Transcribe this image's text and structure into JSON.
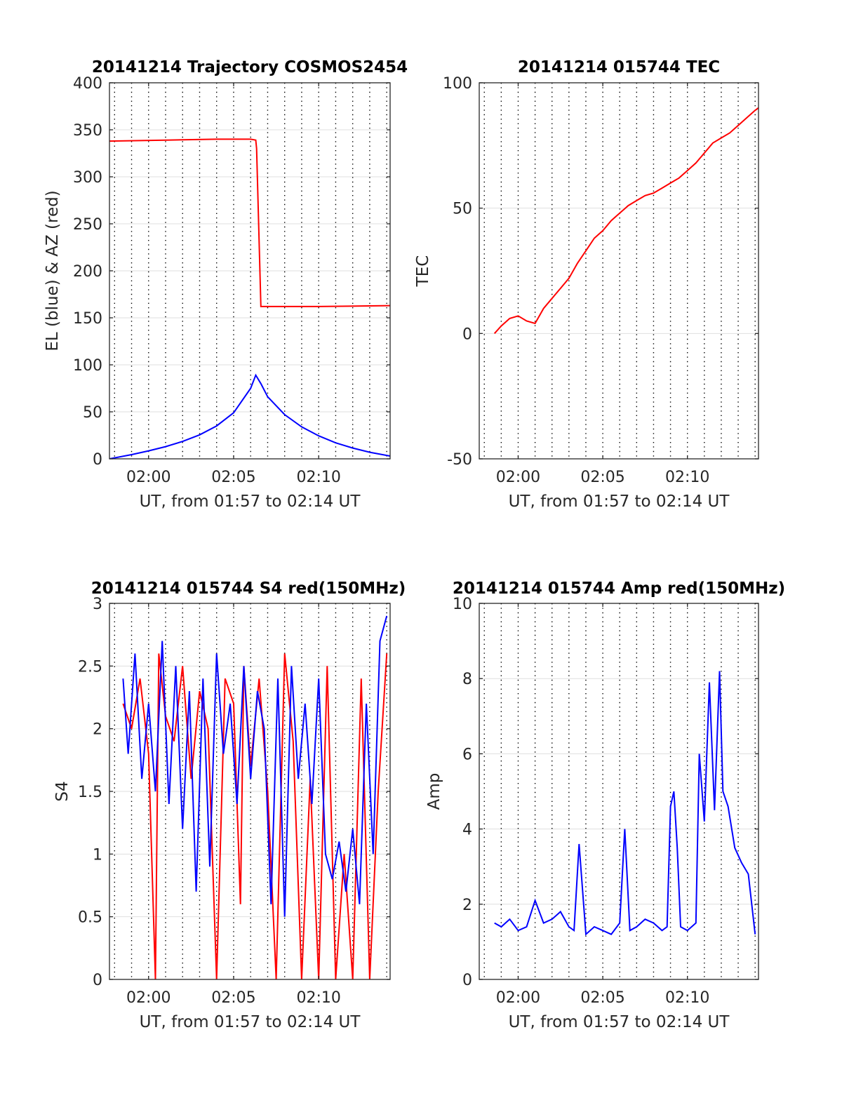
{
  "chart_data": [
    {
      "type": "line",
      "title": "20141214 Trajectory COSMOS2454",
      "xlabel": "UT, from 01:57 to 02:14 UT",
      "ylabel": "EL (blue) & AZ (red)",
      "x_unit": "minutes after 00:00 UT",
      "xlim": [
        117.7,
        134.2
      ],
      "ylim": [
        0,
        400
      ],
      "xticks": [
        "02:00",
        "02:05",
        "02:10"
      ],
      "yticks": [
        "0",
        "50",
        "100",
        "150",
        "200",
        "250",
        "300",
        "350",
        "400"
      ],
      "grid": true,
      "series": [
        {
          "color": "#ff0000",
          "x": [
            117.7,
            121.0,
            124.0,
            126.0,
            126.3,
            126.35,
            126.6,
            130.0,
            134.2
          ],
          "values": [
            338,
            339,
            340,
            340,
            339,
            330,
            162,
            162,
            163
          ]
        },
        {
          "color": "#0000ff",
          "x": [
            117.7,
            119.0,
            120.0,
            121.0,
            122.0,
            123.0,
            124.0,
            125.0,
            126.0,
            126.3,
            126.6,
            127.0,
            128.0,
            129.0,
            130.0,
            131.0,
            132.0,
            133.0,
            134.2
          ],
          "values": [
            0,
            4.5,
            8.5,
            13,
            18.5,
            25.5,
            35,
            49,
            75,
            89,
            80,
            66,
            47,
            34,
            24.5,
            17,
            11.5,
            7,
            3
          ]
        }
      ]
    },
    {
      "type": "line",
      "title": "20141214 015744 TEC",
      "xlabel": "UT, from 01:57 to 02:14 UT",
      "ylabel": "TEC",
      "x_unit": "minutes after 00:00 UT",
      "xlim": [
        117.7,
        134.2
      ],
      "ylim": [
        -50,
        100
      ],
      "xticks": [
        "02:00",
        "02:05",
        "02:10"
      ],
      "yticks": [
        "-50",
        "0",
        "50",
        "100"
      ],
      "grid": true,
      "series": [
        {
          "color": "#ff0000",
          "x": [
            118.6,
            119.0,
            119.5,
            120.0,
            120.5,
            121.0,
            121.5,
            122.0,
            122.5,
            123.0,
            123.5,
            124.0,
            124.5,
            125.0,
            125.5,
            126.0,
            126.5,
            127.0,
            127.5,
            128.0,
            128.5,
            129.0,
            129.5,
            130.0,
            130.5,
            131.0,
            131.5,
            132.0,
            132.5,
            133.0,
            133.5,
            134.0,
            134.2
          ],
          "values": [
            0,
            3,
            6,
            7,
            5,
            4,
            10,
            14,
            18,
            22,
            28,
            33,
            38,
            41,
            45,
            48,
            51,
            53,
            55,
            56,
            58,
            60,
            62,
            65,
            68,
            72,
            76,
            78,
            80,
            83,
            86,
            89,
            90
          ]
        }
      ]
    },
    {
      "type": "line",
      "title": "20141214 015744 S4 red(150MHz)",
      "xlabel": "UT, from 01:57 to 02:14 UT",
      "ylabel": "S4",
      "x_unit": "minutes after 00:00 UT",
      "xlim": [
        117.7,
        134.2
      ],
      "ylim": [
        0,
        3
      ],
      "xticks": [
        "02:00",
        "02:05",
        "02:10"
      ],
      "yticks": [
        "0",
        "0.5",
        "1",
        "1.5",
        "2",
        "2.5",
        "3"
      ],
      "grid": true,
      "series": [
        {
          "color": "#ff0000",
          "x": [
            118.5,
            119.0,
            119.5,
            120.0,
            120.4,
            120.6,
            121.0,
            121.5,
            122.0,
            122.5,
            123.0,
            123.5,
            124.0,
            124.5,
            125.0,
            125.4,
            125.6,
            126.0,
            126.5,
            127.0,
            127.5,
            128.0,
            128.5,
            129.0,
            129.5,
            130.0,
            130.5,
            131.0,
            131.5,
            132.0,
            132.5,
            133.0,
            133.5,
            134.0
          ],
          "values": [
            2.2,
            2.0,
            2.4,
            1.8,
            0,
            2.6,
            2.1,
            1.9,
            2.5,
            1.6,
            2.3,
            2.0,
            0,
            2.4,
            2.2,
            0.6,
            2.5,
            1.7,
            2.4,
            1.5,
            0,
            2.6,
            1.9,
            0,
            1.6,
            0,
            2.5,
            0,
            1.0,
            0,
            2.4,
            0,
            1.5,
            2.6
          ]
        },
        {
          "color": "#0000ff",
          "x": [
            118.5,
            118.8,
            119.2,
            119.6,
            120.0,
            120.4,
            120.8,
            121.2,
            121.6,
            122.0,
            122.4,
            122.8,
            123.2,
            123.6,
            124.0,
            124.4,
            124.8,
            125.2,
            125.6,
            126.0,
            126.4,
            126.8,
            127.2,
            127.6,
            128.0,
            128.4,
            128.8,
            129.2,
            129.6,
            130.0,
            130.4,
            130.8,
            131.2,
            131.6,
            132.0,
            132.4,
            132.8,
            133.2,
            133.6,
            134.0
          ],
          "values": [
            2.4,
            1.8,
            2.6,
            1.6,
            2.2,
            1.5,
            2.7,
            1.4,
            2.5,
            1.2,
            2.3,
            0.7,
            2.4,
            0.9,
            2.6,
            1.8,
            2.2,
            1.4,
            2.5,
            1.6,
            2.3,
            2.0,
            0.6,
            2.4,
            0.5,
            2.5,
            1.6,
            2.2,
            1.4,
            2.4,
            1.0,
            0.8,
            1.1,
            0.7,
            1.2,
            0.6,
            2.2,
            1.0,
            2.7,
            2.9
          ]
        }
      ]
    },
    {
      "type": "line",
      "title": "20141214 015744 Amp red(150MHz)",
      "xlabel": "UT, from 01:57 to 02:14 UT",
      "ylabel": "Amp",
      "x_unit": "minutes after 00:00 UT",
      "xlim": [
        117.7,
        134.2
      ],
      "ylim": [
        0,
        10
      ],
      "xticks": [
        "02:00",
        "02:05",
        "02:10"
      ],
      "yticks": [
        "0",
        "2",
        "4",
        "6",
        "8",
        "10"
      ],
      "grid": true,
      "series": [
        {
          "color": "#0000ff",
          "x": [
            118.6,
            119.0,
            119.5,
            120.0,
            120.5,
            121.0,
            121.5,
            122.0,
            122.5,
            123.0,
            123.3,
            123.6,
            124.0,
            124.5,
            125.0,
            125.5,
            126.0,
            126.3,
            126.6,
            127.0,
            127.5,
            128.0,
            128.5,
            128.8,
            129.0,
            129.2,
            129.4,
            129.6,
            130.0,
            130.5,
            130.7,
            131.0,
            131.3,
            131.6,
            131.9,
            132.1,
            132.4,
            132.8,
            133.2,
            133.6,
            134.0
          ],
          "values": [
            1.5,
            1.4,
            1.6,
            1.3,
            1.4,
            2.1,
            1.5,
            1.6,
            1.8,
            1.4,
            1.3,
            3.6,
            1.2,
            1.4,
            1.3,
            1.2,
            1.5,
            4.0,
            1.3,
            1.4,
            1.6,
            1.5,
            1.3,
            1.4,
            4.6,
            5.0,
            3.5,
            1.4,
            1.3,
            1.5,
            6.0,
            4.2,
            7.9,
            4.5,
            8.2,
            5.0,
            4.6,
            3.5,
            3.1,
            2.8,
            1.2
          ]
        }
      ]
    }
  ]
}
